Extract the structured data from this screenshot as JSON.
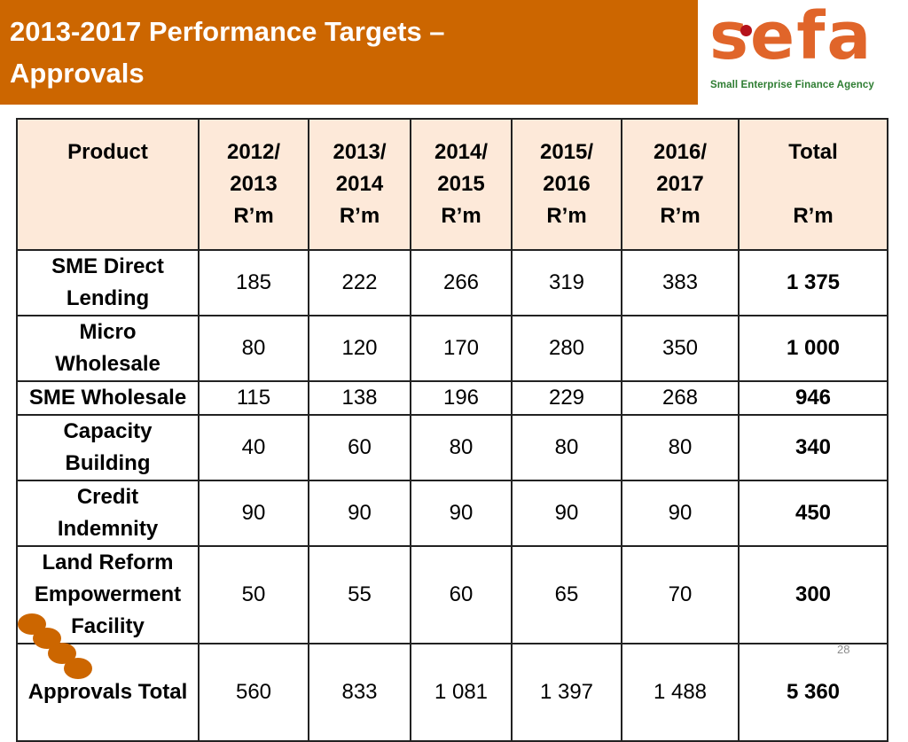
{
  "slide": {
    "title_line1": "2013-2017 Performance Targets  –",
    "title_line2": "Approvals",
    "page_number": "28"
  },
  "logo": {
    "word": "sefa",
    "subtitle": "Small Enterprise Finance Agency"
  },
  "colors": {
    "title_bar": "#cc6600",
    "header_fill": "#fde9d9",
    "logo_orange": "#e0652a",
    "logo_green": "#2e7d32",
    "logo_dot": "#b5121b"
  },
  "table": {
    "headers": [
      [
        "Product",
        "",
        ""
      ],
      [
        "2012/",
        "2013",
        "R’m"
      ],
      [
        "2013/",
        "2014",
        "R’m"
      ],
      [
        "2014/",
        "2015",
        "R’m"
      ],
      [
        "2015/",
        "2016",
        "R’m"
      ],
      [
        "2016/",
        "2017",
        "R’m"
      ],
      [
        "Total",
        "",
        "R’m"
      ]
    ],
    "rows": [
      {
        "product": [
          "SME Direct",
          "Lending"
        ],
        "values": [
          "185",
          "222",
          "266",
          "319",
          "383"
        ],
        "total": "1 375"
      },
      {
        "product": [
          "Micro",
          "Wholesale"
        ],
        "values": [
          "80",
          "120",
          "170",
          "280",
          "350"
        ],
        "total": "1 000"
      },
      {
        "product": [
          "SME Wholesale"
        ],
        "values": [
          "115",
          "138",
          "196",
          "229",
          "268"
        ],
        "total": "946"
      },
      {
        "product": [
          "Capacity",
          "Building"
        ],
        "values": [
          "40",
          "60",
          "80",
          "80",
          "80"
        ],
        "total": "340"
      },
      {
        "product": [
          "Credit",
          "Indemnity"
        ],
        "values": [
          "90",
          "90",
          "90",
          "90",
          "90"
        ],
        "total": "450"
      },
      {
        "product": [
          "Land Reform",
          "Empowerment",
          "Facility"
        ],
        "values": [
          "50",
          "55",
          "60",
          "65",
          "70"
        ],
        "total": "300"
      },
      {
        "product": [
          "Approvals Total"
        ],
        "values": [
          "560",
          "833",
          "1 081",
          "1 397",
          "1 488"
        ],
        "total": "5 360"
      }
    ]
  }
}
